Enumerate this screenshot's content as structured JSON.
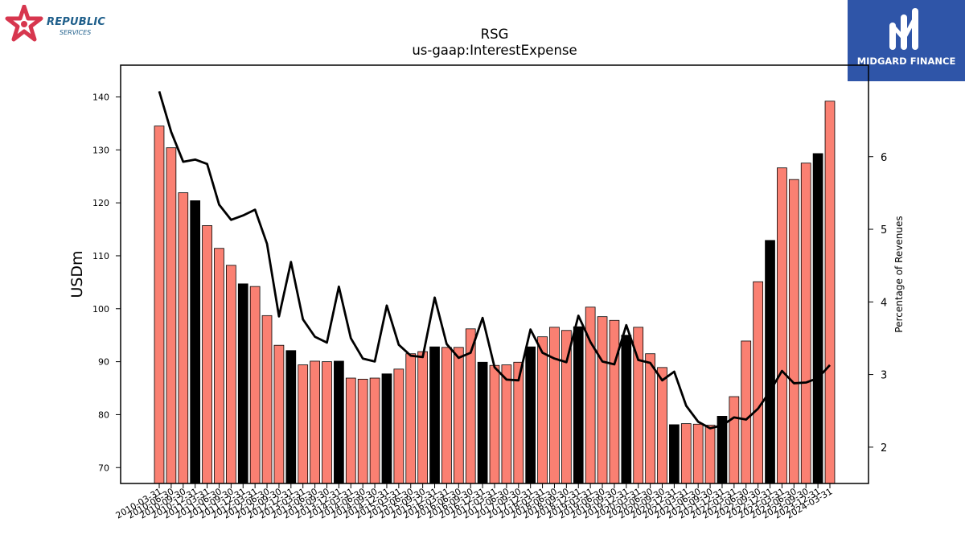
{
  "logos": {
    "left_name": "REPUBLIC",
    "left_sub": "SERVICES",
    "right_name": "MIDGARD FINANCE"
  },
  "chart_data": {
    "type": "bar",
    "title": "RSG",
    "subtitle": "us-gaap:InterestExpense",
    "ylabel": "USDm",
    "y2label": "Percentage of Revenues",
    "ylim": [
      67,
      146
    ],
    "y2lim": [
      1.5,
      7.26
    ],
    "yticks": [
      70,
      80,
      90,
      100,
      110,
      120,
      130,
      140
    ],
    "y2ticks": [
      2,
      3,
      4,
      5,
      6
    ],
    "grid": false,
    "colors": {
      "bar": "#fa8072",
      "bar_q4": "#000000",
      "line": "#000000"
    },
    "categories": [
      "2010-03-31",
      "2010-06-30",
      "2010-09-30",
      "2010-12-31",
      "2011-03-31",
      "2011-06-30",
      "2011-09-30",
      "2011-12-31",
      "2012-03-31",
      "2012-06-30",
      "2012-09-30",
      "2012-12-31",
      "2013-03-31",
      "2013-06-30",
      "2013-09-30",
      "2013-12-31",
      "2014-03-31",
      "2014-06-30",
      "2014-09-30",
      "2014-12-31",
      "2015-03-31",
      "2015-06-30",
      "2015-09-30",
      "2015-12-31",
      "2016-03-31",
      "2016-06-30",
      "2016-09-30",
      "2016-12-31",
      "2017-03-31",
      "2017-06-30",
      "2017-09-30",
      "2017-12-31",
      "2018-03-31",
      "2018-06-30",
      "2018-09-30",
      "2018-12-31",
      "2019-03-31",
      "2019-06-30",
      "2019-09-30",
      "2019-12-31",
      "2020-03-31",
      "2020-06-30",
      "2020-09-30",
      "2020-12-31",
      "2021-03-31",
      "2021-06-30",
      "2021-09-30",
      "2021-12-31",
      "2022-03-31",
      "2022-06-30",
      "2022-09-30",
      "2022-12-31",
      "2023-03-31",
      "2023-06-30",
      "2023-09-30",
      "2023-12-31",
      "2024-03-31"
    ],
    "series": [
      {
        "kind": "bar",
        "values": [
          134.5,
          130.4,
          121.9,
          120.4,
          115.7,
          111.4,
          108.2,
          104.7,
          104.2,
          98.7,
          93.1,
          92.1,
          89.4,
          90.1,
          90.0,
          90.1,
          86.9,
          86.7,
          86.9,
          87.7,
          88.6,
          91.5,
          91.9,
          92.8,
          92.7,
          92.7,
          96.2,
          89.9,
          89.3,
          89.4,
          89.9,
          92.8,
          94.7,
          96.5,
          95.9,
          96.6,
          100.3,
          98.5,
          97.8,
          95.0,
          96.5,
          91.5,
          88.9,
          78.1,
          78.3,
          78.2,
          78.0,
          79.7,
          83.4,
          93.9,
          105.1,
          112.9,
          126.6,
          124.4,
          127.5,
          129.3,
          139.2
        ]
      },
      {
        "kind": "line",
        "axis": "right",
        "values": [
          6.9,
          6.34,
          5.93,
          5.96,
          5.9,
          5.34,
          5.13,
          5.19,
          5.27,
          4.8,
          3.8,
          4.55,
          3.76,
          3.52,
          3.44,
          4.21,
          3.5,
          3.22,
          3.18,
          3.95,
          3.41,
          3.26,
          3.24,
          4.06,
          3.42,
          3.23,
          3.3,
          3.78,
          3.1,
          2.93,
          2.92,
          3.62,
          3.3,
          3.22,
          3.17,
          3.81,
          3.45,
          3.18,
          3.14,
          3.68,
          3.2,
          3.16,
          2.92,
          3.04,
          2.57,
          2.35,
          2.26,
          2.3,
          2.41,
          2.38,
          2.53,
          2.77,
          3.05,
          2.88,
          2.89,
          2.95,
          3.13
        ]
      }
    ]
  }
}
